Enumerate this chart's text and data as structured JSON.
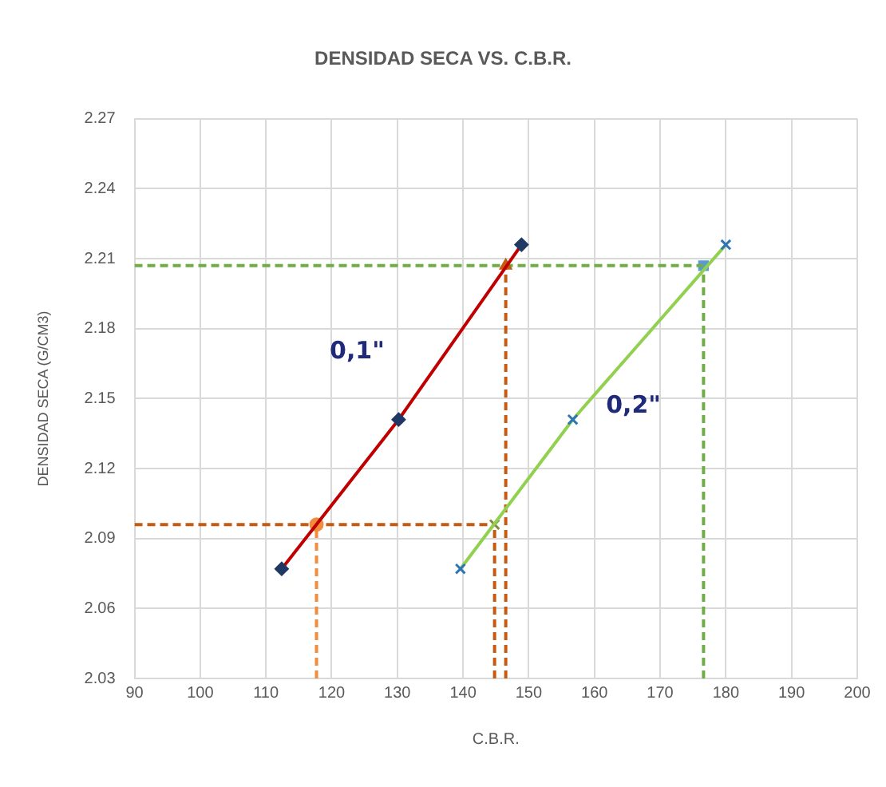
{
  "chart_data": {
    "type": "line",
    "title": "DENSIDAD SECA VS. C.B.R.",
    "xlabel": "C.B.R.",
    "ylabel": "DENSIDAD SECA (G/CM3)",
    "xlim": [
      90,
      200
    ],
    "xticks": [
      90,
      100,
      110,
      120,
      130,
      140,
      150,
      160,
      170,
      180,
      190,
      200
    ],
    "ylim": [
      2.03,
      2.27
    ],
    "yticks": [
      2.03,
      2.06,
      2.09,
      2.12,
      2.15,
      2.18,
      2.21,
      2.24,
      2.27
    ],
    "grid": true,
    "legend": false,
    "marker": "diamond",
    "line_style": "solid",
    "series": [
      {
        "name": "0,1\"",
        "color": "#c00000",
        "colors": [
          "#1f3864",
          "#1f3864",
          "#1f3864"
        ],
        "x": [
          112.4,
          130.2,
          148.9
        ],
        "values": [
          2.077,
          2.141,
          2.216
        ]
      },
      {
        "name": "0,2\"",
        "color": "#92d050",
        "colors": [
          "#2e75b6",
          "#2e75b6",
          "#2e75b6"
        ],
        "marker": "cross",
        "x": [
          139.6,
          156.7,
          180.0
        ],
        "values": [
          2.077,
          2.141,
          2.216
        ]
      },
      {
        "color": "#f08c3c",
        "colors": [
          null,
          "#f08c3c"
        ],
        "marker": "circle",
        "line_style": "dashed",
        "x": [
          117.7,
          117.7
        ],
        "values": [
          2.03,
          2.096
        ]
      },
      {
        "color": "#c55a11",
        "marker": "none",
        "line_style": "dashed",
        "x": [
          90,
          144.8
        ],
        "values": [
          2.096,
          2.096
        ]
      },
      {
        "color": "#c55a11",
        "colors": [
          null,
          "#7f8c3c"
        ],
        "marker": "cross",
        "line_style": "dashed",
        "x": [
          144.8,
          144.8
        ],
        "values": [
          2.03,
          2.096
        ]
      },
      {
        "color": "#c55a11",
        "colors": [
          null,
          "#c55a11"
        ],
        "marker": "triangle",
        "line_style": "dashed",
        "x": [
          146.5,
          146.5
        ],
        "values": [
          2.03,
          2.207
        ]
      },
      {
        "color": "#70ad47",
        "marker": "none",
        "line_style": "dashed",
        "x": [
          90,
          176.6
        ],
        "values": [
          2.207,
          2.207
        ]
      },
      {
        "color": "#70ad47",
        "colors": [
          null,
          "#5b9bd5"
        ],
        "marker": "square",
        "line_style": "dashed",
        "x": [
          176.6,
          176.6
        ],
        "values": [
          2.03,
          2.207
        ]
      }
    ]
  }
}
